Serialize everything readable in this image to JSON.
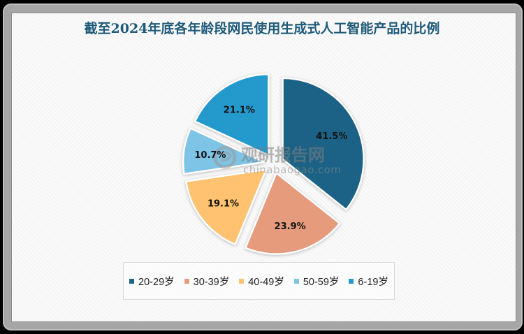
{
  "title": "截至2024年底各年龄段网民使用生成式人工智能产品的比例",
  "watermark": {
    "brand": "观研报告网",
    "url": "chinabaogao.com"
  },
  "legend": [
    {
      "label": "20-29岁",
      "color": "#1B6286"
    },
    {
      "label": "30-39岁",
      "color": "#E59B7C"
    },
    {
      "label": "40-49岁",
      "color": "#FEC270"
    },
    {
      "label": "50-59岁",
      "color": "#7EC4E6"
    },
    {
      "label": "6-19岁",
      "color": "#2399CC"
    }
  ],
  "chart_data": {
    "type": "pie",
    "title": "截至2024年底各年龄段网民使用生成式人工智能产品的比例",
    "categories": [
      "20-29岁",
      "30-39岁",
      "40-49岁",
      "50-59岁",
      "6-19岁"
    ],
    "values": [
      41.5,
      23.9,
      19.1,
      10.7,
      21.1
    ],
    "labels": [
      "41.5%",
      "23.9%",
      "19.1%",
      "10.7%",
      "21.1%"
    ],
    "colors": [
      "#1B6286",
      "#E59B7C",
      "#FEC270",
      "#7EC4E6",
      "#2399CC"
    ],
    "exploded": true,
    "start_angle": "12 o'clock, clockwise",
    "legend_position": "bottom"
  }
}
